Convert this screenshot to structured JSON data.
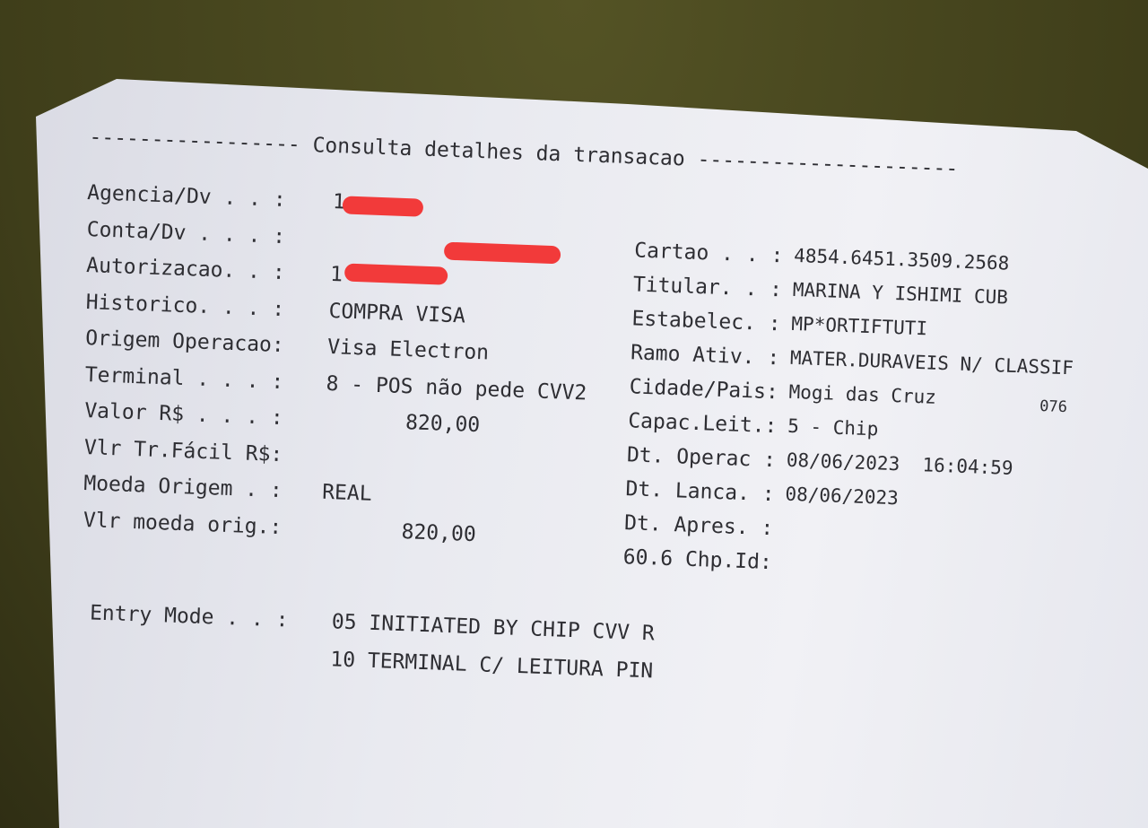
{
  "title": "----------------- Consulta detalhes da transacao ---------------------",
  "left": [
    {
      "label": "Agencia/Dv . . :",
      "value": "1"
    },
    {
      "label": "Conta/Dv . . . :",
      "value": ""
    },
    {
      "label": "Autorizacao. . :",
      "value": "1"
    },
    {
      "label": "Historico. . . :",
      "value": "COMPRA VISA"
    },
    {
      "label": "Origem Operacao:",
      "value": "Visa Electron"
    },
    {
      "label": "Terminal . . . :",
      "value": "8 - POS não pede CVV2"
    },
    {
      "label": "Valor R$ . . . :",
      "value": "820,00"
    },
    {
      "label": "Vlr Tr.Fácil R$:",
      "value": ""
    },
    {
      "label": "Moeda Origem . :",
      "value": "REAL"
    },
    {
      "label": "Vlr moeda orig.:",
      "value": "820,00"
    }
  ],
  "right": [
    {
      "label": "Cartao . . :",
      "value": "4854.6451.3509.2568"
    },
    {
      "label": "Titular. . :",
      "value": "MARINA Y ISHIMI CUB"
    },
    {
      "label": "Estabelec. :",
      "value": "MP*ORTIFTUTI"
    },
    {
      "label": "Ramo Ativ. :",
      "value": "MATER.DURAVEIS N/ CLASSIF"
    },
    {
      "label": "Cidade/Pais:",
      "value": "Mogi das Cruz",
      "extra": "076"
    },
    {
      "label": "Capac.Leit.:",
      "value": "5 - Chip"
    },
    {
      "label": "Dt. Operac :",
      "value": "08/06/2023  16:04:59"
    },
    {
      "label": "Dt. Lanca. :",
      "value": "08/06/2023"
    },
    {
      "label": "Dt. Apres. :",
      "value": ""
    },
    {
      "label": "60.6 Chp.Id:",
      "value": ""
    }
  ],
  "entry_mode": {
    "label": "Entry Mode . . :",
    "line1": "05 INITIATED BY CHIP CVV R",
    "line2": "10 TERMINAL C/ LEITURA PIN"
  },
  "colors": {
    "redaction": "#f23a3a",
    "paper": "#eceef3",
    "background": "#4b4a1f"
  }
}
